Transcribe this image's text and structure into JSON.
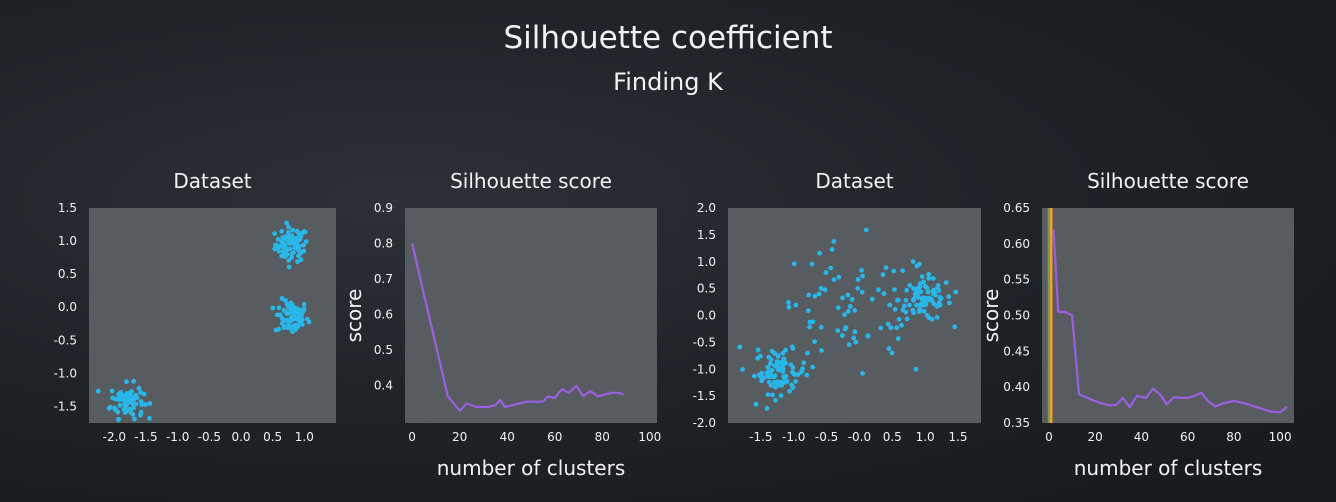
{
  "header": {
    "title": "Silhouette coefficient",
    "subtitle": "Finding K"
  },
  "colors": {
    "points": "#29b6e8",
    "score_line": "#9b5fe0",
    "marker_orange": "#f0a030",
    "marker_green": "#7a9a5a",
    "panel_bg": "#575c61"
  },
  "chart_data": [
    {
      "type": "scatter",
      "title": "Dataset",
      "xlabel": "",
      "ylabel": "",
      "xlim": [
        -2.4,
        1.5
      ],
      "ylim": [
        -1.75,
        1.5
      ],
      "xticks": [
        -2.0,
        -1.5,
        -1.0,
        -0.5,
        0.0,
        0.5,
        1.0
      ],
      "xtick_labels": [
        "-2.0",
        "-1.5",
        "-1.0",
        "-0.5",
        "0.0",
        "0.5",
        "1.0"
      ],
      "yticks": [
        1.5,
        1.0,
        0.5,
        0.0,
        -0.5,
        -1.0,
        -1.5
      ],
      "ytick_labels": [
        "1.5",
        "1.0",
        "0.5",
        "0.0",
        "-0.5",
        "-1.0",
        "-1.5"
      ],
      "grid": false,
      "clusters": [
        {
          "center": [
            0.8,
            0.95
          ],
          "spread": 0.13,
          "count": 75
        },
        {
          "center": [
            0.8,
            -0.15
          ],
          "spread": 0.13,
          "count": 75
        },
        {
          "center": [
            -1.8,
            -1.42
          ],
          "spread": 0.13,
          "count": 75
        }
      ]
    },
    {
      "type": "line",
      "title": "Silhouette score",
      "xlabel": "number of clusters",
      "ylabel": "score",
      "xlim": [
        -3,
        103
      ],
      "ylim": [
        0.295,
        0.9
      ],
      "xticks": [
        0,
        20,
        40,
        60,
        80,
        100
      ],
      "xtick_labels": [
        "0",
        "20",
        "40",
        "60",
        "80",
        "100"
      ],
      "yticks": [
        0.9,
        0.8,
        0.7,
        0.6,
        0.5,
        0.4
      ],
      "ytick_labels": [
        "0.9",
        "0.8",
        "0.7",
        "0.6",
        "0.5",
        "0.4"
      ],
      "grid": false,
      "series": [
        {
          "x": [
            0,
            15,
            20,
            23,
            27,
            32,
            35,
            37,
            39,
            42,
            45,
            48,
            52,
            55,
            57,
            60,
            63,
            66,
            69,
            72,
            75,
            78,
            81,
            84,
            87,
            89
          ],
          "y": [
            0.8,
            0.37,
            0.33,
            0.35,
            0.34,
            0.34,
            0.345,
            0.36,
            0.34,
            0.345,
            0.35,
            0.355,
            0.355,
            0.355,
            0.37,
            0.365,
            0.39,
            0.38,
            0.4,
            0.37,
            0.385,
            0.37,
            0.375,
            0.38,
            0.38,
            0.375
          ]
        }
      ]
    },
    {
      "type": "scatter",
      "title": "Dataset",
      "xlabel": "",
      "ylabel": "",
      "xlim": [
        -2.0,
        1.85
      ],
      "ylim": [
        -2.0,
        2.0
      ],
      "xticks": [
        -1.5,
        -1.0,
        -0.5,
        0.0,
        0.5,
        1.0,
        1.5
      ],
      "xtick_labels": [
        "-1.5",
        "-1.0",
        "-0.5",
        "-0.0",
        "0.5",
        "1.0",
        "1.5"
      ],
      "yticks": [
        2.0,
        1.5,
        1.0,
        0.5,
        0.0,
        -0.5,
        -1.0,
        -1.5,
        -2.0
      ],
      "ytick_labels": [
        "2.0",
        "1.5",
        "1.0",
        "0.5",
        "0.0",
        "-0.5",
        "-1.0",
        "-1.5",
        "-2.0"
      ],
      "grid": false,
      "clusters": [
        {
          "center": [
            -1.2,
            -1.05
          ],
          "spread": 0.2,
          "count": 80
        },
        {
          "center": [
            1.0,
            0.3
          ],
          "spread": 0.2,
          "count": 80
        },
        {
          "center": [
            -0.1,
            0.0
          ],
          "spread": 0.65,
          "count": 80
        }
      ]
    },
    {
      "type": "line",
      "title": "Silhouette score",
      "xlabel": "number of clusters",
      "ylabel": "score",
      "xlim": [
        -3,
        106
      ],
      "ylim": [
        0.35,
        0.65
      ],
      "xticks": [
        0,
        20,
        40,
        60,
        80,
        100
      ],
      "xtick_labels": [
        "0",
        "20",
        "40",
        "60",
        "80",
        "100"
      ],
      "yticks": [
        0.65,
        0.6,
        0.55,
        0.5,
        0.45,
        0.4,
        0.35
      ],
      "ytick_labels": [
        "0.65",
        "0.60",
        "0.55",
        "0.50",
        "0.45",
        "0.40",
        "0.35"
      ],
      "grid": false,
      "vlines": [
        {
          "x": 0,
          "color": "#7a9a5a"
        },
        {
          "x": 1,
          "color": "#f0a030"
        }
      ],
      "series": [
        {
          "x": [
            2,
            4,
            7,
            10,
            13,
            18,
            22,
            26,
            29,
            32,
            35,
            38,
            42,
            45,
            48,
            51,
            54,
            57,
            60,
            63,
            66,
            69,
            72,
            76,
            80,
            84,
            88,
            92,
            96,
            100,
            103
          ],
          "y": [
            0.62,
            0.505,
            0.505,
            0.5,
            0.39,
            0.383,
            0.378,
            0.375,
            0.375,
            0.385,
            0.372,
            0.388,
            0.385,
            0.398,
            0.39,
            0.376,
            0.386,
            0.385,
            0.385,
            0.388,
            0.392,
            0.38,
            0.373,
            0.378,
            0.381,
            0.378,
            0.374,
            0.37,
            0.366,
            0.365,
            0.373
          ]
        }
      ]
    }
  ]
}
